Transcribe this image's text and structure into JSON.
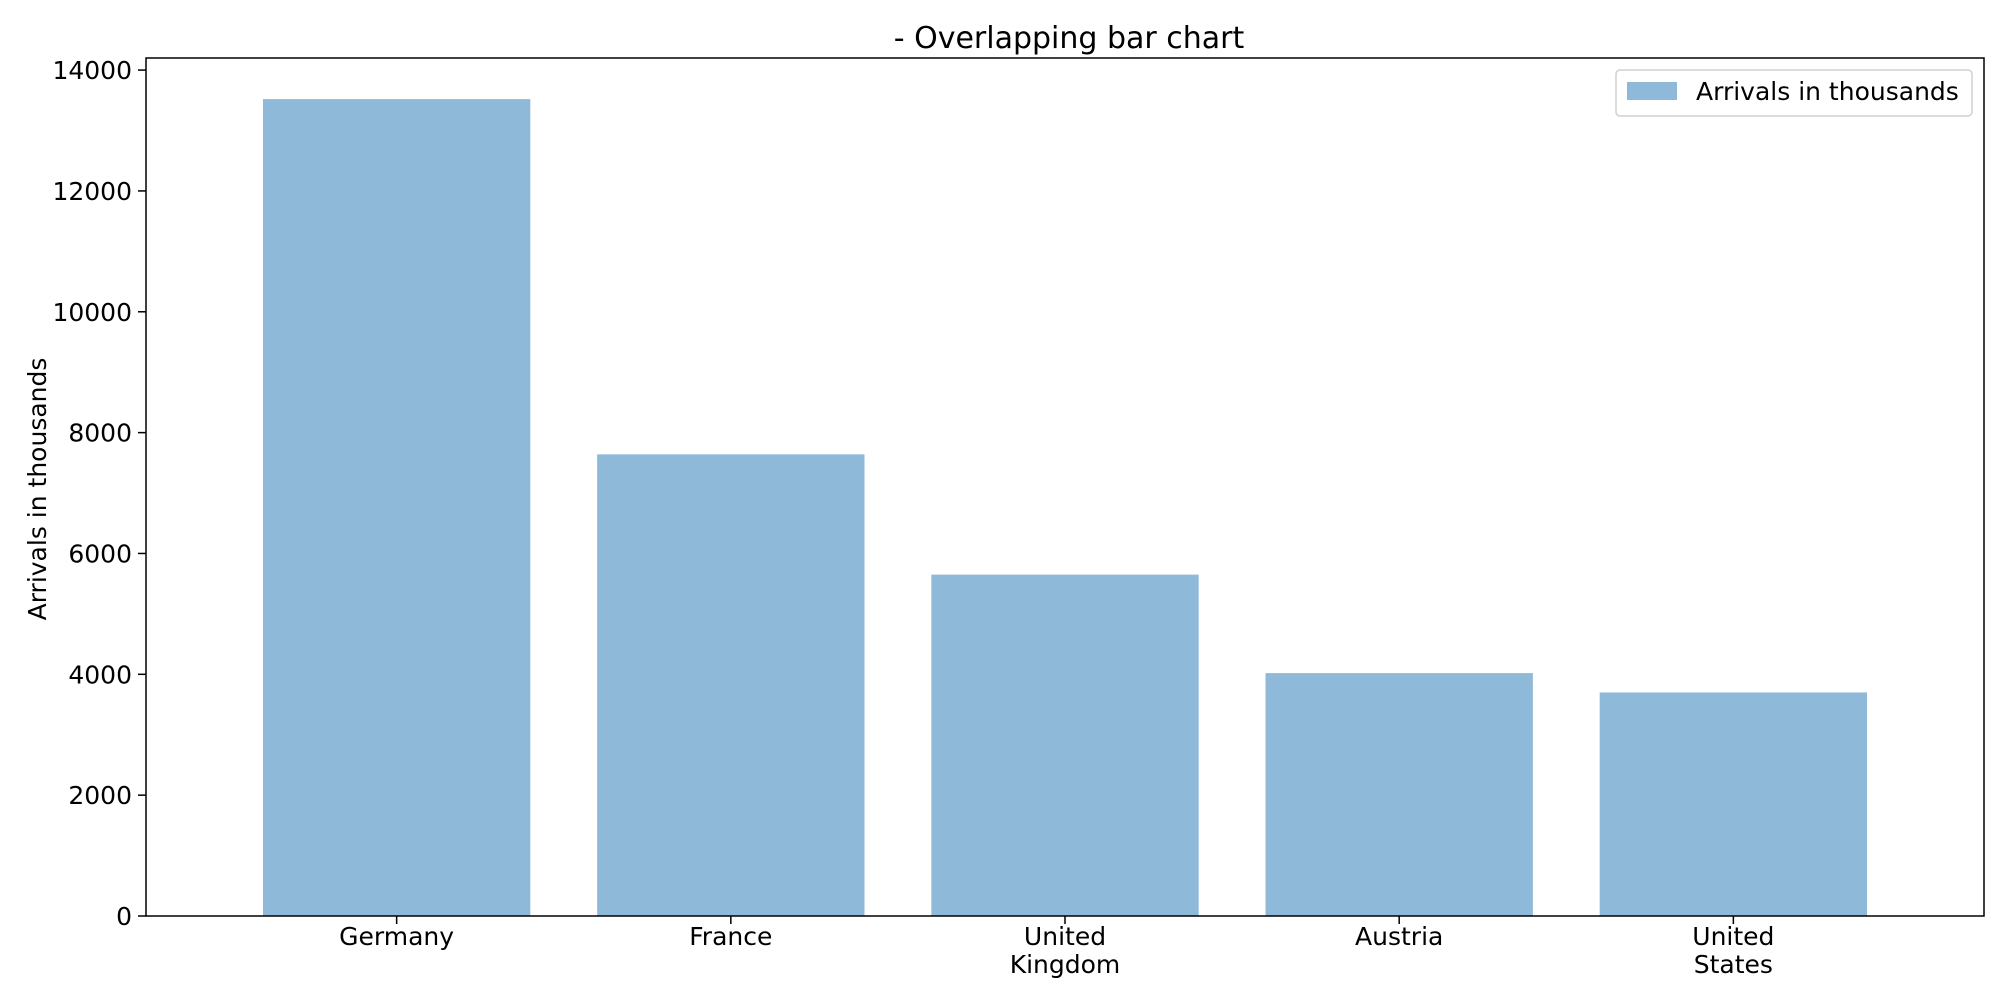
{
  "chart_data": {
    "type": "bar",
    "title": "- Overlapping bar chart",
    "xlabel": "",
    "ylabel": "Arrivals in thousands",
    "categories": [
      "Germany",
      "France",
      "United Kingdom",
      "Austria",
      "United States"
    ],
    "category_tick_labels": [
      [
        "Germany"
      ],
      [
        "France"
      ],
      [
        "United",
        "Kingdom"
      ],
      [
        "Austria"
      ],
      [
        "United",
        "States"
      ]
    ],
    "series": [
      {
        "name": "Arrivals in thousands",
        "values": [
          13520,
          7640,
          5650,
          4020,
          3700
        ],
        "color": "#8fb9d9"
      }
    ],
    "ylim": [
      0,
      14200
    ],
    "yticks": [
      0,
      2000,
      4000,
      6000,
      8000,
      10000,
      12000,
      14000
    ],
    "grid": false,
    "legend": {
      "position": "top-right",
      "entries": [
        "Arrivals in thousands"
      ]
    },
    "colors": {
      "bar": "#8fb9d9",
      "axis": "#000000",
      "background": "#ffffff",
      "legend_border": "#d0d0d0"
    }
  }
}
